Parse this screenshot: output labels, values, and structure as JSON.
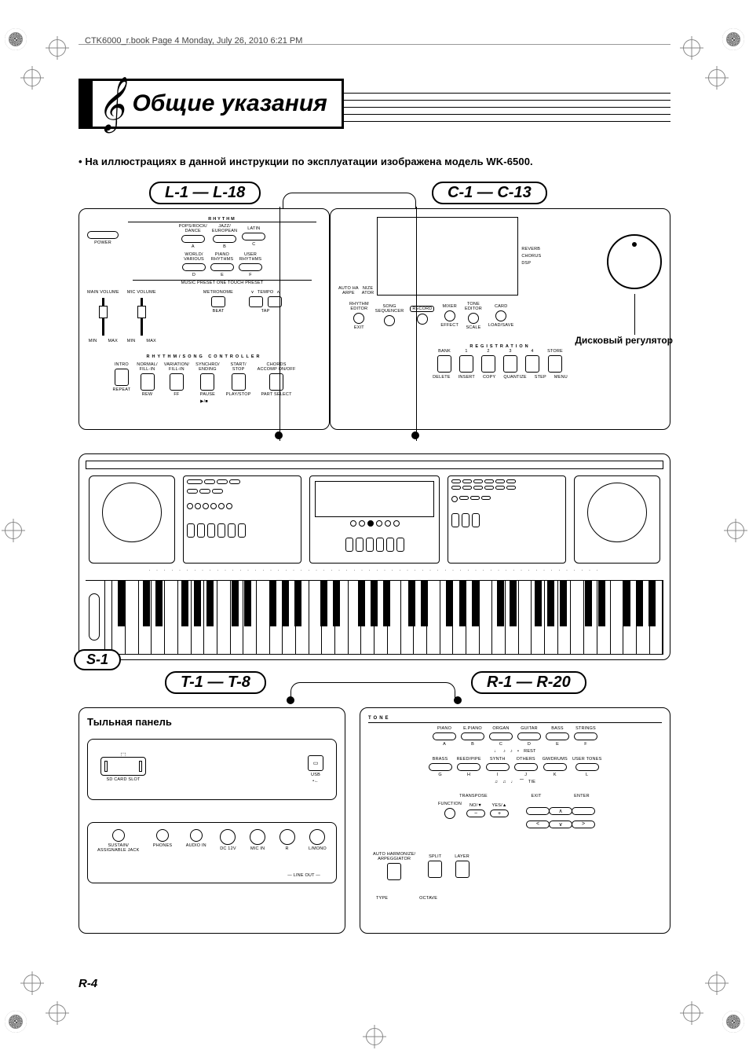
{
  "page": {
    "header": "CTK6000_r.book  Page 4  Monday, July 26, 2010  6:21 PM",
    "footer": "R-4"
  },
  "title": "Общие указания",
  "intro_bullet": "• На иллюстрациях в данной инструкции по эксплуатации изображена модель WK-6500.",
  "region_labels": {
    "L": "L-1 — L-18",
    "C": "C-1 — C-13",
    "S": "S-1",
    "T": "T-1 — T-8",
    "R": "R-1 — R-20"
  },
  "russian": {
    "dial": "Дисковый регулятор",
    "back_panel": "Тыльная панель"
  },
  "left_panel": {
    "power": "POWER",
    "main_volume": "MAIN VOLUME",
    "mic_volume": "MIC VOLUME",
    "min": "MIN",
    "max": "MAX",
    "rhythm_header": "RHYTHM",
    "rhythm_row1": [
      {
        "key": "A",
        "top": "POPS/ROCK/\nDANCE"
      },
      {
        "key": "B",
        "top": "JAZZ/\nEUROPEAN"
      },
      {
        "key": "C",
        "top": "LATIN"
      }
    ],
    "rhythm_row2": [
      {
        "key": "D",
        "top": "WORLD/\nVARIOUS"
      },
      {
        "key": "E",
        "top": "PIANO\nRHYTHMS"
      },
      {
        "key": "F",
        "top": "USER\nRHYTHMS"
      }
    ],
    "preset_label": "MUSIC PRESET  ONE TOUCH PRESET",
    "metronome": "METRONOME",
    "tempo": "TEMPO",
    "beat": "BEAT",
    "tap": "TAP",
    "controller_header": "RHYTHM/SONG CONTROLLER",
    "controller": [
      {
        "top": "INTRO",
        "bottom": "REPEAT"
      },
      {
        "top": "NORMAL/\nFILL-IN",
        "bottom": "REW"
      },
      {
        "top": "VARIATION/\nFILL-IN",
        "bottom": "FF"
      },
      {
        "top": "SYNCHRO/\nENDING",
        "bottom": "PAUSE"
      },
      {
        "top": "START/\nSTOP",
        "bottom": "PLAY/STOP"
      },
      {
        "top": "CHORDS\nACCOMP ON/OFF",
        "bottom": "PART SELECT"
      }
    ],
    "play_icon": "▶/■"
  },
  "center_panel": {
    "auto_harm": "AUTO HA\nARPE",
    "nize": "NIZE\nATOR",
    "reverb": "REVERB",
    "chorus": "CHORUS",
    "dsp": "DSP",
    "row_btns": [
      {
        "top": "RHYTHM\nEDITOR",
        "bottom": "EXIT"
      },
      {
        "top": "SONG\nSEQUENCER",
        "bottom": ""
      },
      {
        "top": "RECORD",
        "bottom": "",
        "boxed": true
      },
      {
        "top": "MIXER",
        "bottom": "EFFECT"
      },
      {
        "top": "TONE\nEDITOR",
        "bottom": "SCALE"
      },
      {
        "top": "CARD",
        "bottom": "LOAD/SAVE"
      }
    ],
    "reg_header": "REGISTRATION",
    "reg": [
      "BANK",
      "1",
      "2",
      "3",
      "4",
      "STORE"
    ],
    "reg_bottom": [
      "DELETE",
      "INSERT",
      "COPY",
      "QUANTIZE",
      "STEP",
      "MENU"
    ]
  },
  "back_panel": {
    "sd": "SD CARD SLOT",
    "usb": "USB",
    "jacks": [
      "SUSTAIN/\nASSIGNABLE JACK",
      "PHONES",
      "AUDIO IN",
      "DC 12V",
      "MIC IN",
      "R",
      "L/MONO"
    ],
    "lineout": "LINE OUT"
  },
  "right_panel": {
    "tone_header": "TONE",
    "tone_row1": [
      {
        "key": "A",
        "top": "PIANO"
      },
      {
        "key": "B",
        "top": "E.PIANO"
      },
      {
        "key": "C",
        "top": "ORGAN"
      },
      {
        "key": "D",
        "top": "GUITAR"
      },
      {
        "key": "E",
        "top": "BASS"
      },
      {
        "key": "F",
        "top": "STRINGS"
      }
    ],
    "rest": "REST",
    "tone_row2": [
      {
        "key": "G",
        "top": "BRASS"
      },
      {
        "key": "H",
        "top": "REED/PIPE"
      },
      {
        "key": "I",
        "top": "SYNTH"
      },
      {
        "key": "J",
        "top": "OTHERS"
      },
      {
        "key": "K",
        "top": "GM/DRUMS"
      },
      {
        "key": "L",
        "top": "USER TONES"
      }
    ],
    "tie": "TIE",
    "exit": "EXIT",
    "enter": "ENTER",
    "transpose": "TRANSPOSE",
    "function": "FUNCTION",
    "no": "NO/▼",
    "yes": "YES/▲",
    "minus": "−",
    "plus": "+",
    "arrows": [
      "<",
      ">",
      "∧",
      "∨"
    ],
    "lower": [
      {
        "top": "AUTO HARMONIZE/\nARPEGGIATOR"
      },
      {
        "top": "SPLIT"
      },
      {
        "top": "LAYER"
      }
    ],
    "type": "TYPE",
    "octave": "OCTAVE"
  },
  "style": {
    "page_bg": "#ffffff",
    "line_color": "#000000",
    "crop_gray": "#888888"
  }
}
